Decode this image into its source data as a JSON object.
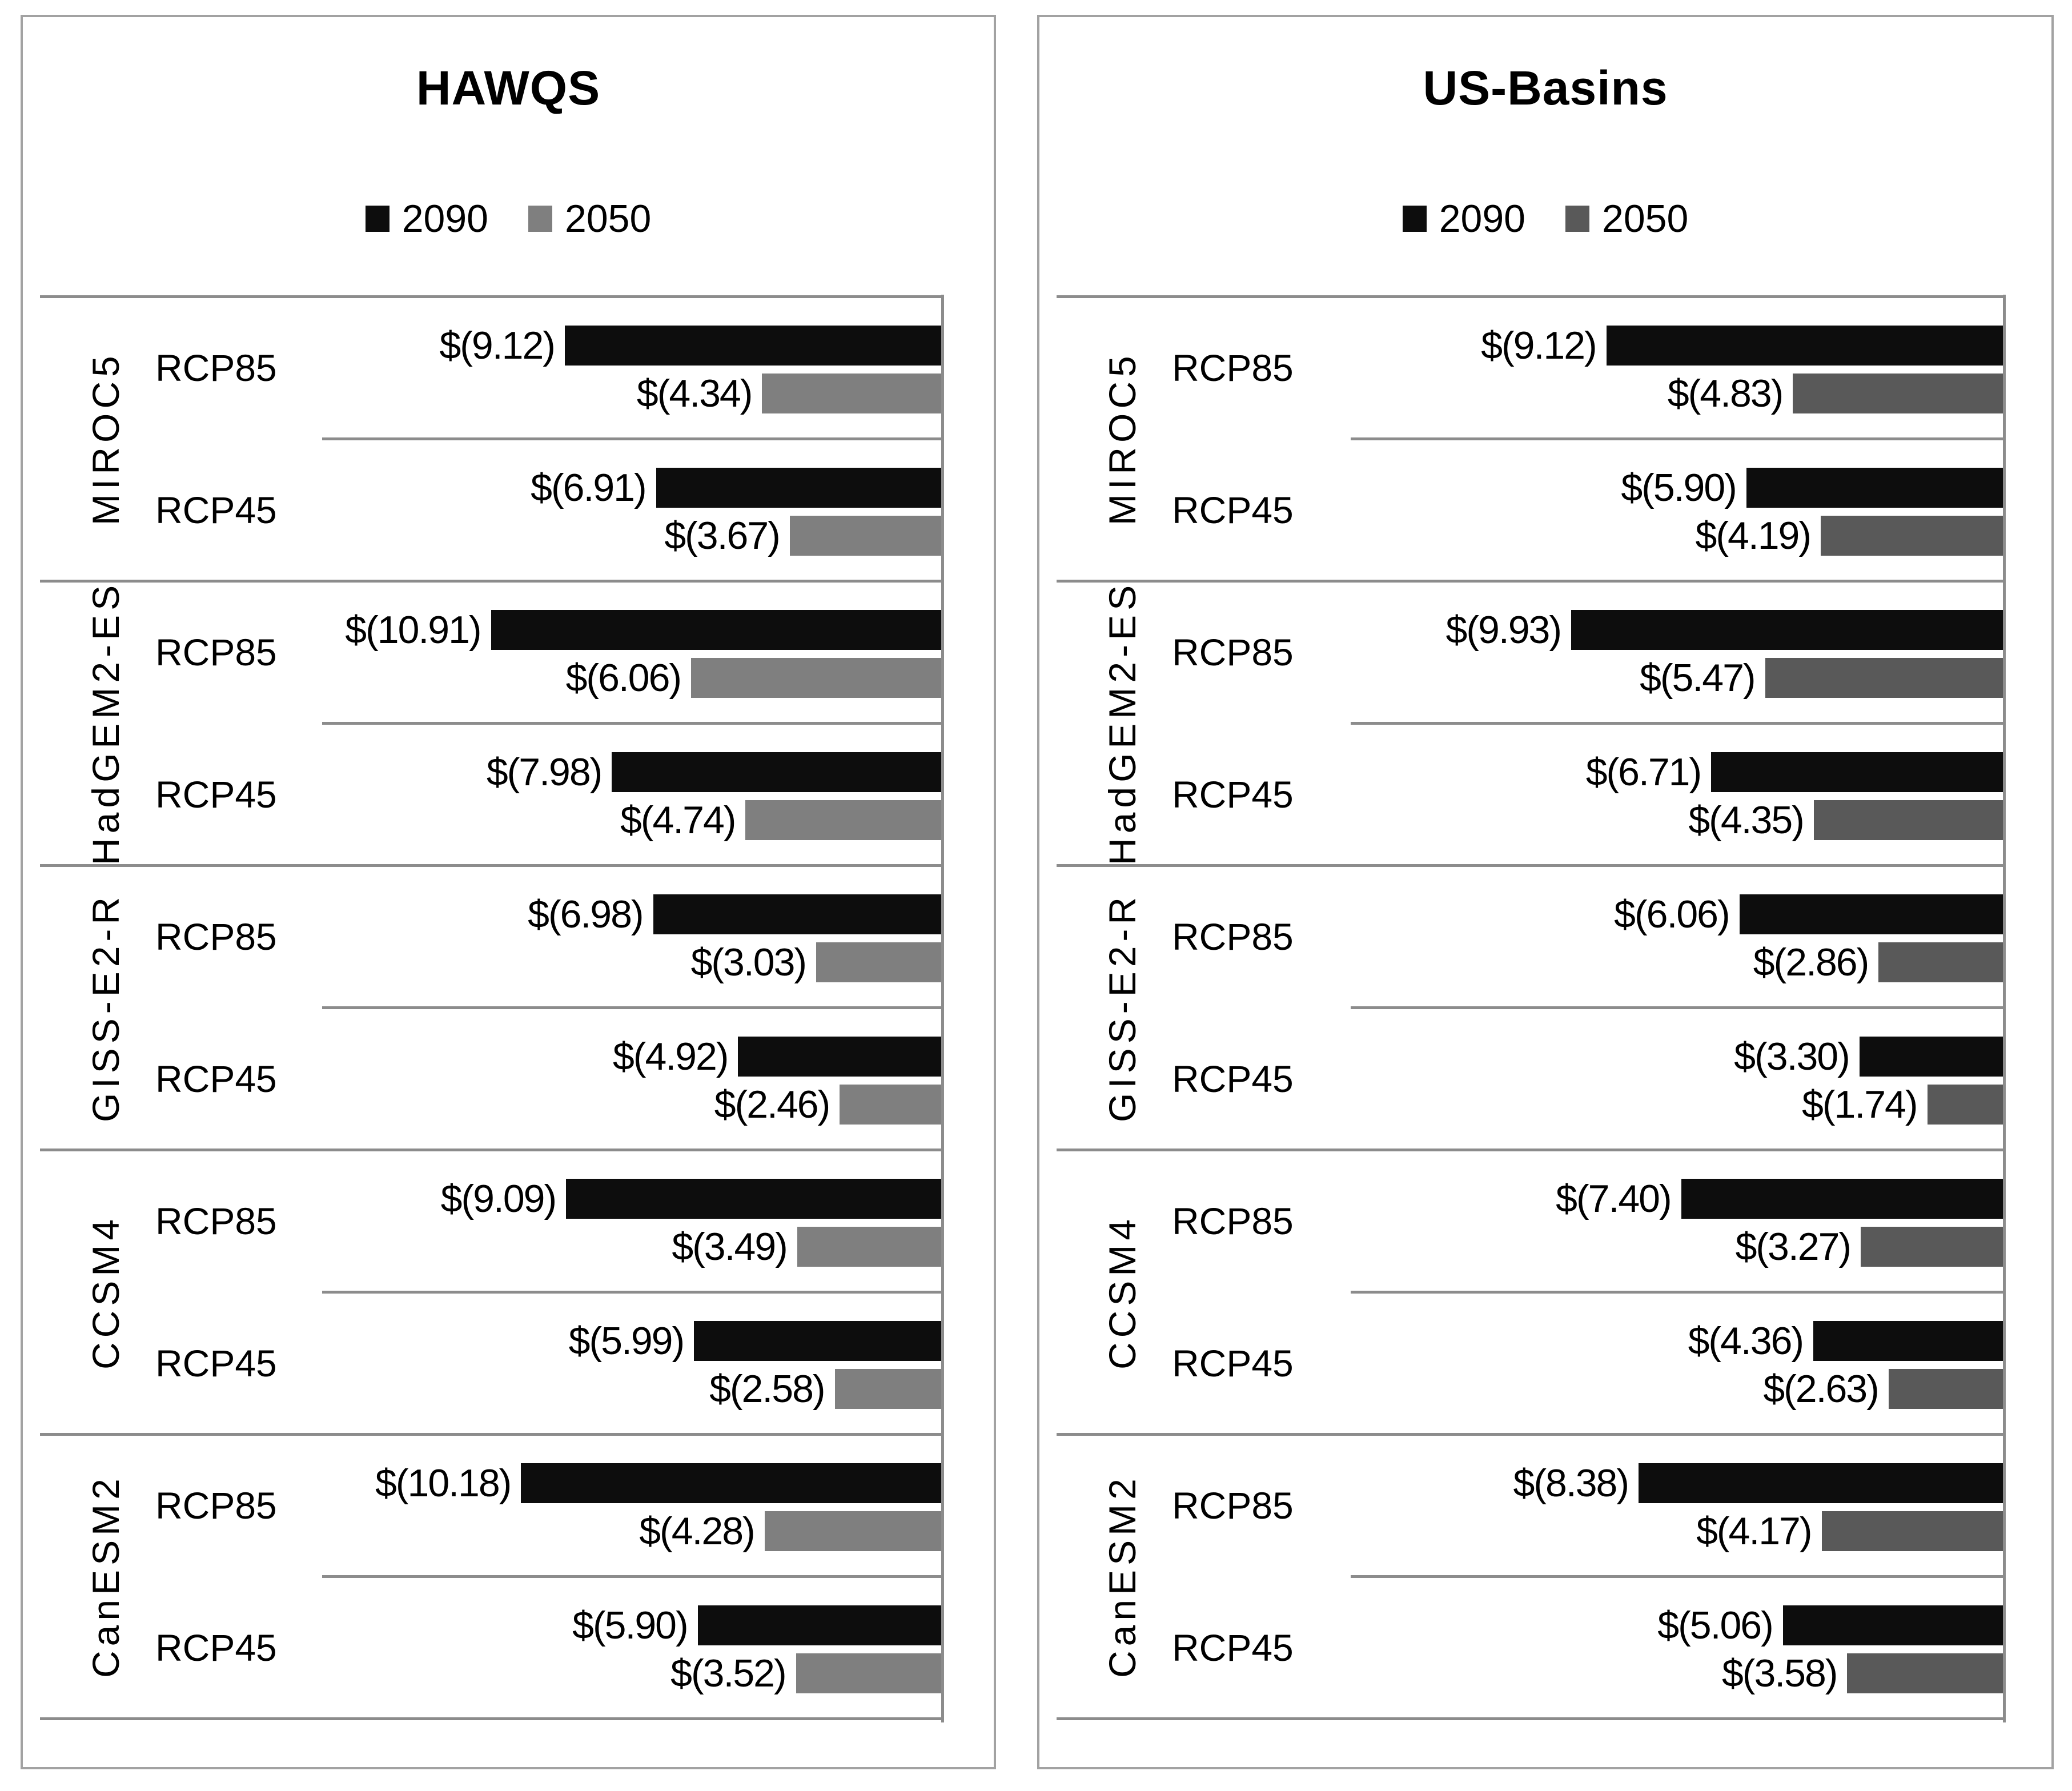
{
  "chart_data": [
    {
      "type": "bar",
      "orientation": "horizontal-negative-right-anchored",
      "title": "HAWQS",
      "legend": [
        "2090",
        "2050"
      ],
      "xlim": [
        -15,
        0
      ],
      "grid": "group-separator-lines-only",
      "legend_position": "top-center",
      "bar_colors": {
        "2090": "#0d0d0d",
        "2050": "#7f7f7f"
      },
      "line_color": "#8c8c8c",
      "groups": [
        {
          "model": "MIROC5",
          "rows": [
            {
              "scenario": "RCP85",
              "bars": [
                {
                  "series": "2090",
                  "value": -9.12,
                  "label": "$(9.12)"
                },
                {
                  "series": "2050",
                  "value": -4.34,
                  "label": "$(4.34)"
                }
              ]
            },
            {
              "scenario": "RCP45",
              "bars": [
                {
                  "series": "2090",
                  "value": -6.91,
                  "label": "$(6.91)"
                },
                {
                  "series": "2050",
                  "value": -3.67,
                  "label": "$(3.67)"
                }
              ]
            }
          ]
        },
        {
          "model": "HadGEM2-ES",
          "rows": [
            {
              "scenario": "RCP85",
              "bars": [
                {
                  "series": "2090",
                  "value": -10.91,
                  "label": "$(10.91)"
                },
                {
                  "series": "2050",
                  "value": -6.06,
                  "label": "$(6.06)"
                }
              ]
            },
            {
              "scenario": "RCP45",
              "bars": [
                {
                  "series": "2090",
                  "value": -7.98,
                  "label": "$(7.98)"
                },
                {
                  "series": "2050",
                  "value": -4.74,
                  "label": "$(4.74)"
                }
              ]
            }
          ]
        },
        {
          "model": "GISS-E2-R",
          "rows": [
            {
              "scenario": "RCP85",
              "bars": [
                {
                  "series": "2090",
                  "value": -6.98,
                  "label": "$(6.98)"
                },
                {
                  "series": "2050",
                  "value": -3.03,
                  "label": "$(3.03)"
                }
              ]
            },
            {
              "scenario": "RCP45",
              "bars": [
                {
                  "series": "2090",
                  "value": -4.92,
                  "label": "$(4.92)"
                },
                {
                  "series": "2050",
                  "value": -2.46,
                  "label": "$(2.46)"
                }
              ]
            }
          ]
        },
        {
          "model": "CCSM4",
          "rows": [
            {
              "scenario": "RCP85",
              "bars": [
                {
                  "series": "2090",
                  "value": -9.09,
                  "label": "$(9.09)"
                },
                {
                  "series": "2050",
                  "value": -3.49,
                  "label": "$(3.49)"
                }
              ]
            },
            {
              "scenario": "RCP45",
              "bars": [
                {
                  "series": "2090",
                  "value": -5.99,
                  "label": "$(5.99)"
                },
                {
                  "series": "2050",
                  "value": -2.58,
                  "label": "$(2.58)"
                }
              ]
            }
          ]
        },
        {
          "model": "CanESM2",
          "rows": [
            {
              "scenario": "RCP85",
              "bars": [
                {
                  "series": "2090",
                  "value": -10.18,
                  "label": "$(10.18)"
                },
                {
                  "series": "2050",
                  "value": -4.28,
                  "label": "$(4.28)"
                }
              ]
            },
            {
              "scenario": "RCP45",
              "bars": [
                {
                  "series": "2090",
                  "value": -5.9,
                  "label": "$(5.90)"
                },
                {
                  "series": "2050",
                  "value": -3.52,
                  "label": "$(3.52)"
                }
              ]
            }
          ]
        }
      ]
    },
    {
      "type": "bar",
      "orientation": "horizontal-negative-right-anchored",
      "title": "US-Basins",
      "legend": [
        "2090",
        "2050"
      ],
      "xlim": [
        -15,
        0
      ],
      "grid": "group-separator-lines-only",
      "legend_position": "top-center",
      "bar_colors": {
        "2090": "#0d0d0d",
        "2050": "#595959"
      },
      "line_color": "#8c8c8c",
      "groups": [
        {
          "model": "MIROC5",
          "rows": [
            {
              "scenario": "RCP85",
              "bars": [
                {
                  "series": "2090",
                  "value": -9.12,
                  "label": "$(9.12)"
                },
                {
                  "series": "2050",
                  "value": -4.83,
                  "label": "$(4.83)"
                }
              ]
            },
            {
              "scenario": "RCP45",
              "bars": [
                {
                  "series": "2090",
                  "value": -5.9,
                  "label": "$(5.90)"
                },
                {
                  "series": "2050",
                  "value": -4.19,
                  "label": "$(4.19)"
                }
              ]
            }
          ]
        },
        {
          "model": "HadGEM2-ES",
          "rows": [
            {
              "scenario": "RCP85",
              "bars": [
                {
                  "series": "2090",
                  "value": -9.93,
                  "label": "$(9.93)"
                },
                {
                  "series": "2050",
                  "value": -5.47,
                  "label": "$(5.47)"
                }
              ]
            },
            {
              "scenario": "RCP45",
              "bars": [
                {
                  "series": "2090",
                  "value": -6.71,
                  "label": "$(6.71)"
                },
                {
                  "series": "2050",
                  "value": -4.35,
                  "label": "$(4.35)"
                }
              ]
            }
          ]
        },
        {
          "model": "GISS-E2-R",
          "rows": [
            {
              "scenario": "RCP85",
              "bars": [
                {
                  "series": "2090",
                  "value": -6.06,
                  "label": "$(6.06)"
                },
                {
                  "series": "2050",
                  "value": -2.86,
                  "label": "$(2.86)"
                }
              ]
            },
            {
              "scenario": "RCP45",
              "bars": [
                {
                  "series": "2090",
                  "value": -3.3,
                  "label": "$(3.30)"
                },
                {
                  "series": "2050",
                  "value": -1.74,
                  "label": "$(1.74)"
                }
              ]
            }
          ]
        },
        {
          "model": "CCSM4",
          "rows": [
            {
              "scenario": "RCP85",
              "bars": [
                {
                  "series": "2090",
                  "value": -7.4,
                  "label": "$(7.40)"
                },
                {
                  "series": "2050",
                  "value": -3.27,
                  "label": "$(3.27)"
                }
              ]
            },
            {
              "scenario": "RCP45",
              "bars": [
                {
                  "series": "2090",
                  "value": -4.36,
                  "label": "$(4.36)"
                },
                {
                  "series": "2050",
                  "value": -2.63,
                  "label": "$(2.63)"
                }
              ]
            }
          ]
        },
        {
          "model": "CanESM2",
          "rows": [
            {
              "scenario": "RCP85",
              "bars": [
                {
                  "series": "2090",
                  "value": -8.38,
                  "label": "$(8.38)"
                },
                {
                  "series": "2050",
                  "value": -4.17,
                  "label": "$(4.17)"
                }
              ]
            },
            {
              "scenario": "RCP45",
              "bars": [
                {
                  "series": "2090",
                  "value": -5.06,
                  "label": "$(5.06)"
                },
                {
                  "series": "2050",
                  "value": -3.58,
                  "label": "$(3.58)"
                }
              ]
            }
          ]
        }
      ]
    }
  ]
}
